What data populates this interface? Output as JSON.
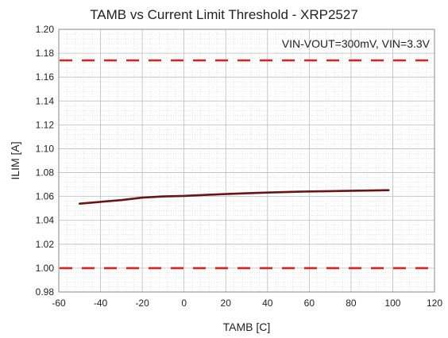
{
  "chart_data": {
    "type": "line",
    "title": "TAMB vs Current Limit Threshold - XRP2527",
    "annotation": "VIN-VOUT=300mV, VIN=3.3V",
    "xlabel": "TAMB [C]",
    "ylabel": "ILIM [A]",
    "xlim": [
      -60,
      120
    ],
    "ylim": [
      0.98,
      1.2
    ],
    "x_ticks": [
      -60,
      -40,
      -20,
      0,
      20,
      40,
      60,
      80,
      100,
      120
    ],
    "x_tick_labels": [
      "-60",
      "-40",
      "-20",
      "0",
      "20",
      "40",
      "60",
      "80",
      "100",
      "120"
    ],
    "y_ticks": [
      0.98,
      1.0,
      1.02,
      1.04,
      1.06,
      1.08,
      1.1,
      1.12,
      1.14,
      1.16,
      1.18,
      1.2
    ],
    "y_tick_labels": [
      "0.98",
      "1.00",
      "1.02",
      "1.04",
      "1.06",
      "1.08",
      "1.10",
      "1.12",
      "1.14",
      "1.16",
      "1.18",
      "1.20"
    ],
    "grid": true,
    "series": [
      {
        "x": [
          -50,
          -40,
          -30,
          -20,
          -10,
          0,
          10,
          20,
          30,
          40,
          50,
          60,
          70,
          80,
          90,
          98
        ],
        "y": [
          1.054,
          1.0555,
          1.057,
          1.059,
          1.06,
          1.0605,
          1.0613,
          1.062,
          1.0627,
          1.0633,
          1.0638,
          1.0642,
          1.0645,
          1.0648,
          1.065,
          1.0653
        ],
        "color": "#6b1414",
        "style": "solid"
      }
    ],
    "reference_lines": [
      {
        "y": 1.174,
        "color": "#e02020",
        "style": "dashed"
      },
      {
        "y": 1.0,
        "color": "#e02020",
        "style": "dashed"
      }
    ]
  }
}
